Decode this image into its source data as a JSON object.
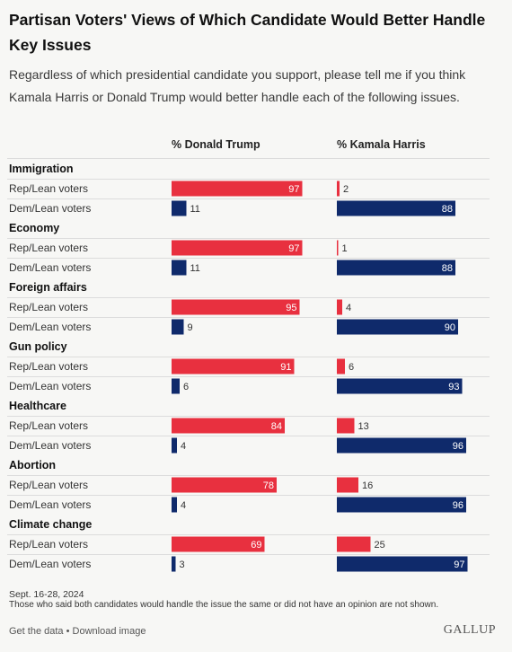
{
  "title": "Partisan Voters' Views of Which Candidate Would Better Handle Key Issues",
  "subtitle": "Regardless of which presidential candidate you support, please tell me if you think Kamala Harris or Donald Trump would better handle each of the following issues.",
  "colors": {
    "rep": "#e8303f",
    "dem": "#0f2a6b",
    "divider": "#dcdcdc"
  },
  "chart_data": {
    "type": "bar",
    "columns": [
      "% Donald Trump",
      "% Kamala Harris"
    ],
    "row_labels": [
      "Rep/Lean voters",
      "Dem/Lean voters"
    ],
    "groups": [
      {
        "issue": "Immigration",
        "trump": [
          97,
          11
        ],
        "harris": [
          2,
          88
        ]
      },
      {
        "issue": "Economy",
        "trump": [
          97,
          11
        ],
        "harris": [
          1,
          88
        ]
      },
      {
        "issue": "Foreign affairs",
        "trump": [
          95,
          9
        ],
        "harris": [
          4,
          90
        ]
      },
      {
        "issue": "Gun policy",
        "trump": [
          91,
          6
        ],
        "harris": [
          6,
          93
        ]
      },
      {
        "issue": "Healthcare",
        "trump": [
          84,
          4
        ],
        "harris": [
          13,
          96
        ]
      },
      {
        "issue": "Abortion",
        "trump": [
          78,
          4
        ],
        "harris": [
          16,
          96
        ]
      },
      {
        "issue": "Climate change",
        "trump": [
          69,
          3
        ],
        "harris": [
          25,
          97
        ]
      }
    ],
    "xlim": [
      0,
      100
    ]
  },
  "footer": {
    "date": "Sept. 16-28, 2024",
    "note": "Those who said both candidates would handle the issue the same or did not have an opinion are not shown.",
    "get_data": "Get the data",
    "separator": " • ",
    "download": "Download image",
    "logo": "GALLUP"
  }
}
